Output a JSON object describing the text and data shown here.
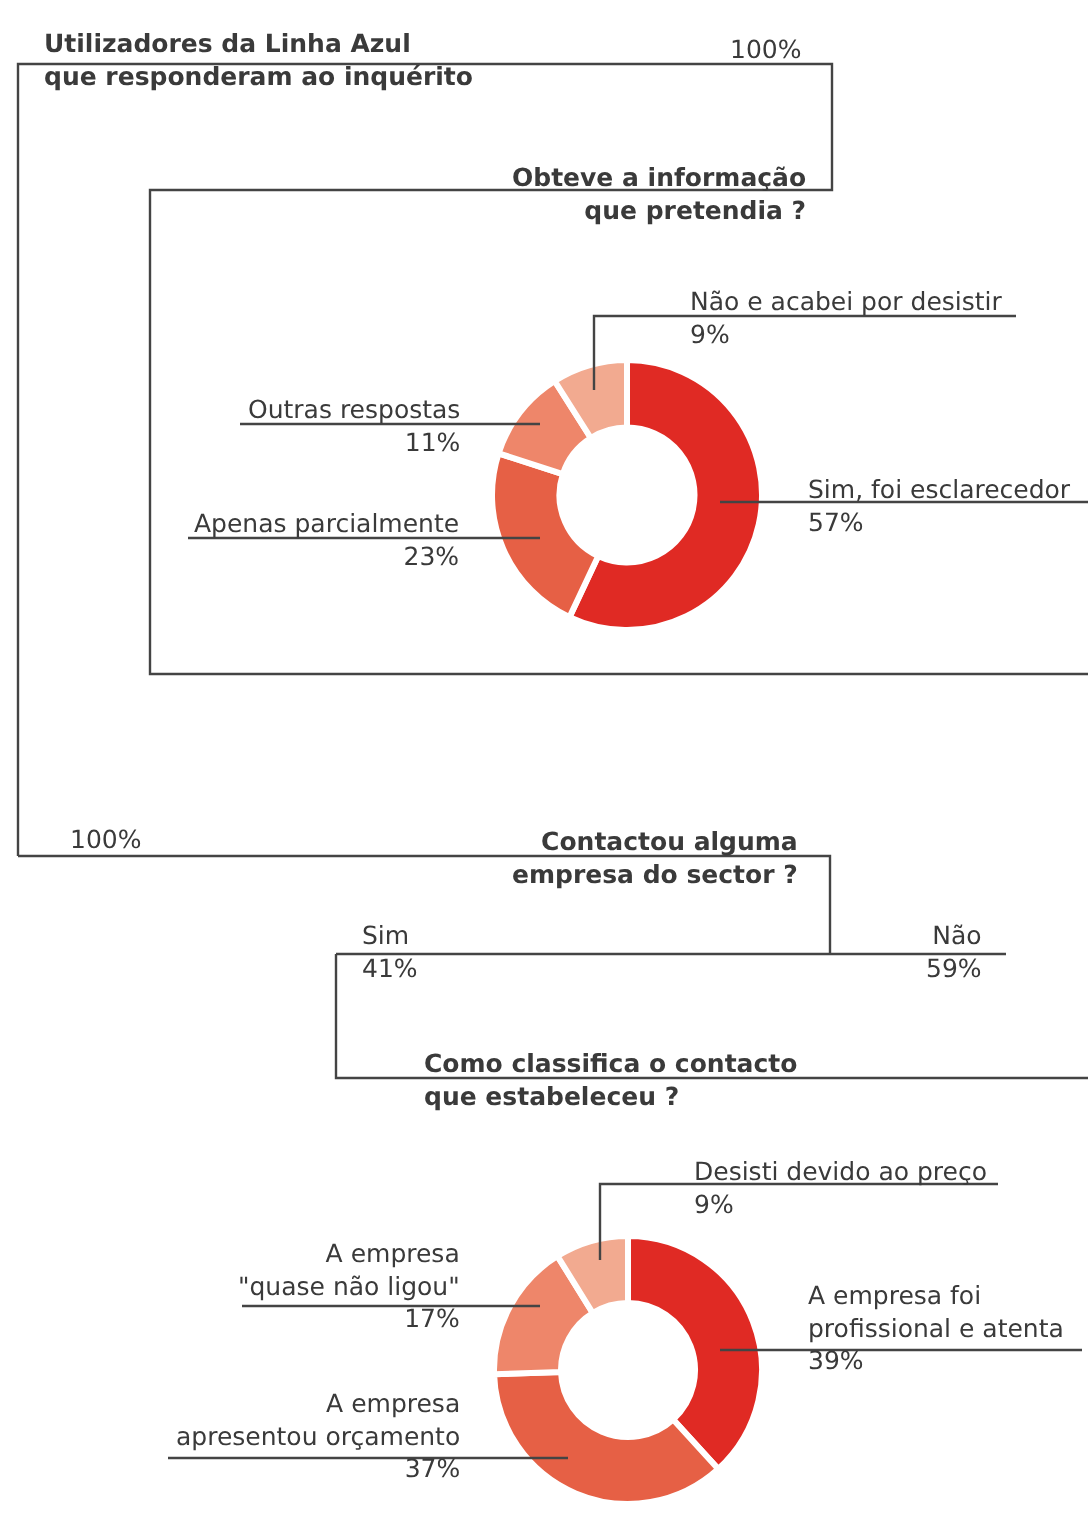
{
  "chart_data": [
    {
      "type": "other",
      "title": "Utilizadores da Linha Azul\nque responderam ao inquérito",
      "annotations": [
        "100%",
        "100%"
      ]
    },
    {
      "type": "donut",
      "title": "Obteve a informação\nque pretendia ?",
      "categories": [
        "Sim, foi esclarecedor",
        "Apenas parcialmente",
        "Outras respostas",
        "Não e acabei por desistir"
      ],
      "values": [
        57,
        23,
        11,
        9
      ],
      "value_labels": [
        "57%",
        "23%",
        "11%",
        "9%"
      ],
      "colors": [
        "#e02a24",
        "#e66045",
        "#ee866a",
        "#f2aa90"
      ]
    },
    {
      "type": "other",
      "title": "Contactou alguma\nempresa do sector ?",
      "annotations": [
        "Sim\n41%",
        "Não\n59%"
      ]
    },
    {
      "type": "donut",
      "title": "Como classifica o contacto\nque estabeleceu ?",
      "categories": [
        "A empresa foi\nprofissional e atenta",
        "A empresa\napresentou orçamento",
        "A empresa\n\"quase não ligou\"",
        "Desisti devido ao preço"
      ],
      "values": [
        39,
        37,
        17,
        9
      ],
      "value_labels": [
        "39%",
        "37%",
        "17%",
        "9%"
      ],
      "colors": [
        "#e02a24",
        "#e66045",
        "#ee866a",
        "#f2aa90"
      ]
    }
  ]
}
